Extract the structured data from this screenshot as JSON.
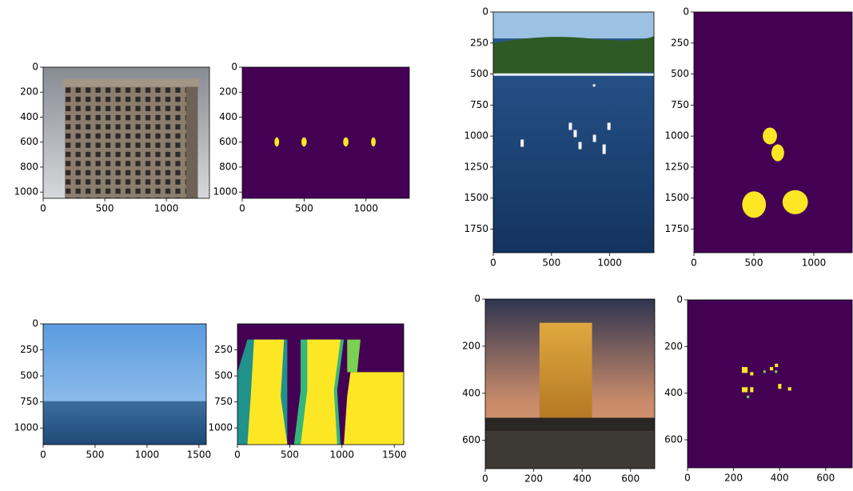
{
  "chart_data": [
    {
      "type": "image",
      "xlim": [
        0,
        1350
      ],
      "ylim": [
        1050,
        0
      ],
      "xticks": [
        0,
        500,
        1000
      ],
      "yticks": [
        0,
        200,
        400,
        600,
        800,
        1000
      ]
    },
    {
      "type": "image",
      "xlim": [
        0,
        1350
      ],
      "ylim": [
        1050,
        0
      ],
      "xticks": [
        0,
        500,
        1000
      ],
      "yticks": [
        0,
        200,
        400,
        600,
        800,
        1000
      ]
    },
    {
      "type": "image",
      "xlim": [
        0,
        1380
      ],
      "ylim": [
        1940,
        0
      ],
      "xticks": [
        0,
        500,
        1000
      ],
      "yticks": [
        0,
        250,
        500,
        750,
        1000,
        1250,
        1500,
        1750
      ]
    },
    {
      "type": "image",
      "xlim": [
        0,
        1320
      ],
      "ylim": [
        1940,
        0
      ],
      "xticks": [
        0,
        500,
        1000
      ],
      "yticks": [
        0,
        250,
        500,
        750,
        1000,
        1250,
        1500,
        1750
      ]
    },
    {
      "type": "image",
      "xlim": [
        0,
        1570
      ],
      "ylim": [
        1160,
        0
      ],
      "xticks": [
        0,
        500,
        1000,
        1500
      ],
      "yticks": [
        0,
        250,
        500,
        750,
        1000
      ]
    },
    {
      "type": "image",
      "xlim": [
        0,
        1590
      ],
      "ylim": [
        1160,
        0
      ],
      "xticks": [
        0,
        500,
        1000,
        1500
      ],
      "yticks": [
        250,
        500,
        750,
        1000
      ]
    },
    {
      "type": "image",
      "xlim": [
        0,
        700
      ],
      "ylim": [
        720,
        0
      ],
      "xticks": [
        0,
        200,
        400,
        600
      ],
      "yticks": [
        0,
        200,
        400,
        600
      ]
    },
    {
      "type": "image",
      "xlim": [
        0,
        715
      ],
      "ylim": [
        720,
        0
      ],
      "xticks": [
        0,
        200,
        400,
        600
      ],
      "yticks": [
        0,
        200,
        400,
        600
      ]
    }
  ]
}
